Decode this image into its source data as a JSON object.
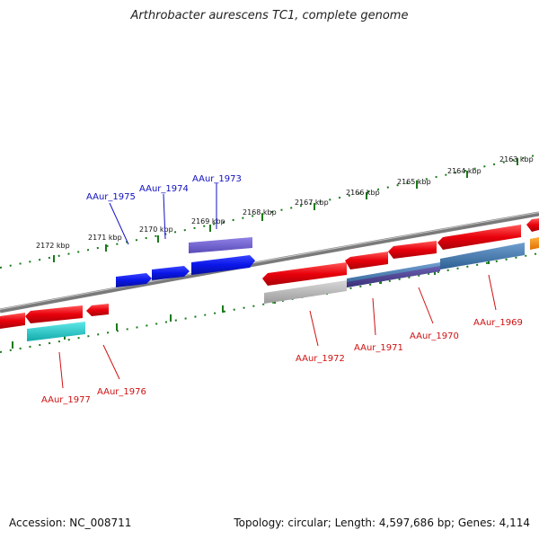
{
  "title": "Arthrobacter aurescens TC1, complete genome",
  "footer": {
    "accession": "Accession: NC_008711",
    "summary": "Topology: circular; Length: 4,597,686 bp; Genes: 4,114"
  },
  "colors": {
    "forward_gene": "#e8000b",
    "reverse_gene_red": "#e8000b",
    "blue_gene": "#0a16e8",
    "purple_gene": "#6a5acd",
    "cyan_gene": "#1ec8c8",
    "steelblue_gene": "#3f77ad",
    "darkslate_gene": "#4b3f8e",
    "grey_gene": "#b4b4b4",
    "orange_gene": "#ff8c00",
    "backbone": "#808080",
    "tick_green": "#1a7a1a",
    "label_blue": "#1010c0",
    "label_red": "#d01010"
  },
  "scale_labels": [
    "2163 kbp",
    "2164 kbp",
    "2165 kbp",
    "2166 kbp",
    "2167 kbp",
    "2168 kbp",
    "2169 kbp",
    "2170 kbp",
    "2171 kbp",
    "2172 kbp"
  ],
  "gene_labels_top": [
    "AAur_1973",
    "AAur_1974",
    "AAur_1975"
  ],
  "gene_labels_bottom": [
    "AAur_1969",
    "AAur_1970",
    "AAur_1971",
    "AAur_1972",
    "AAur_1976",
    "AAur_1977"
  ]
}
